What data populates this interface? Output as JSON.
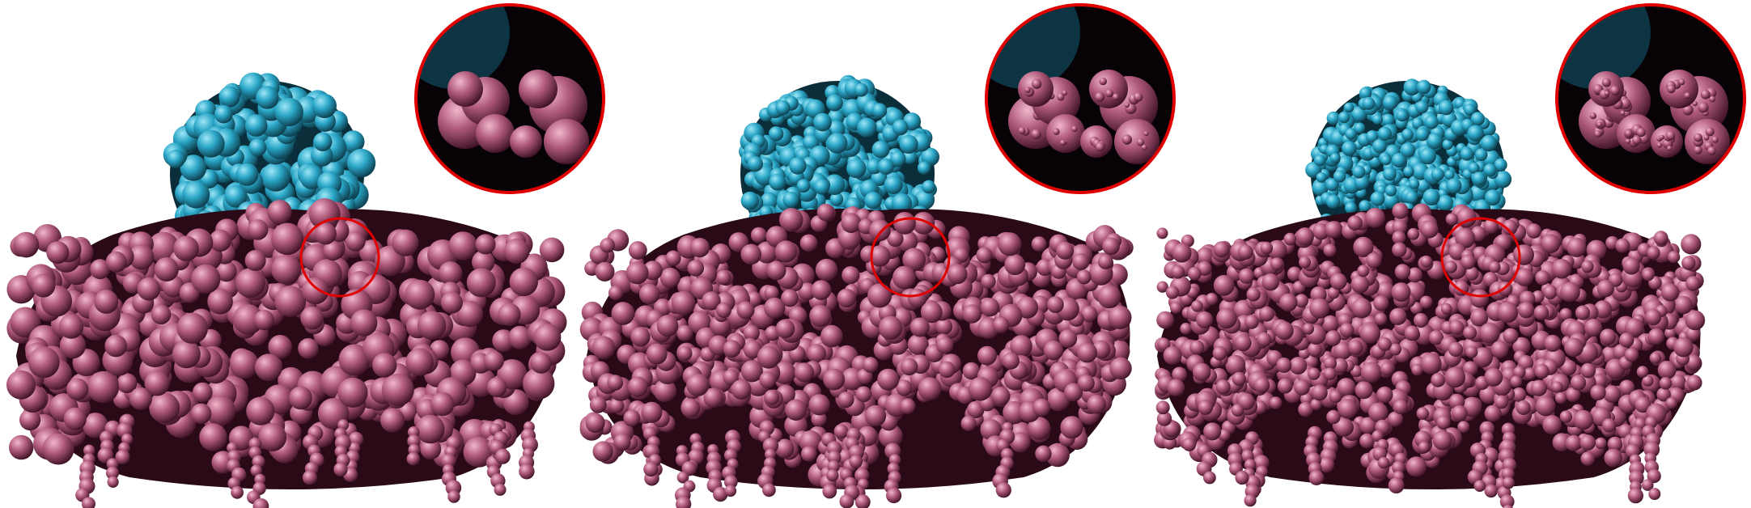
{
  "figure": {
    "panels": [
      {
        "id": "a",
        "variant": "smooth"
      },
      {
        "id": "b",
        "variant": "medium-detail"
      },
      {
        "id": "c",
        "variant": "fine-detail"
      }
    ]
  },
  "colors": {
    "background": "#ffffff",
    "protein_top": "#2aa6c7",
    "protein_top_dark": "#0b3846",
    "protein_bottom": "#b05a7c",
    "protein_bottom_dark": "#3a0f21",
    "highlight_circle": "#e00000"
  },
  "icons": {
    "magnifier_marker": "red-circle-icon",
    "magnified_inset": "zoom-inset"
  }
}
